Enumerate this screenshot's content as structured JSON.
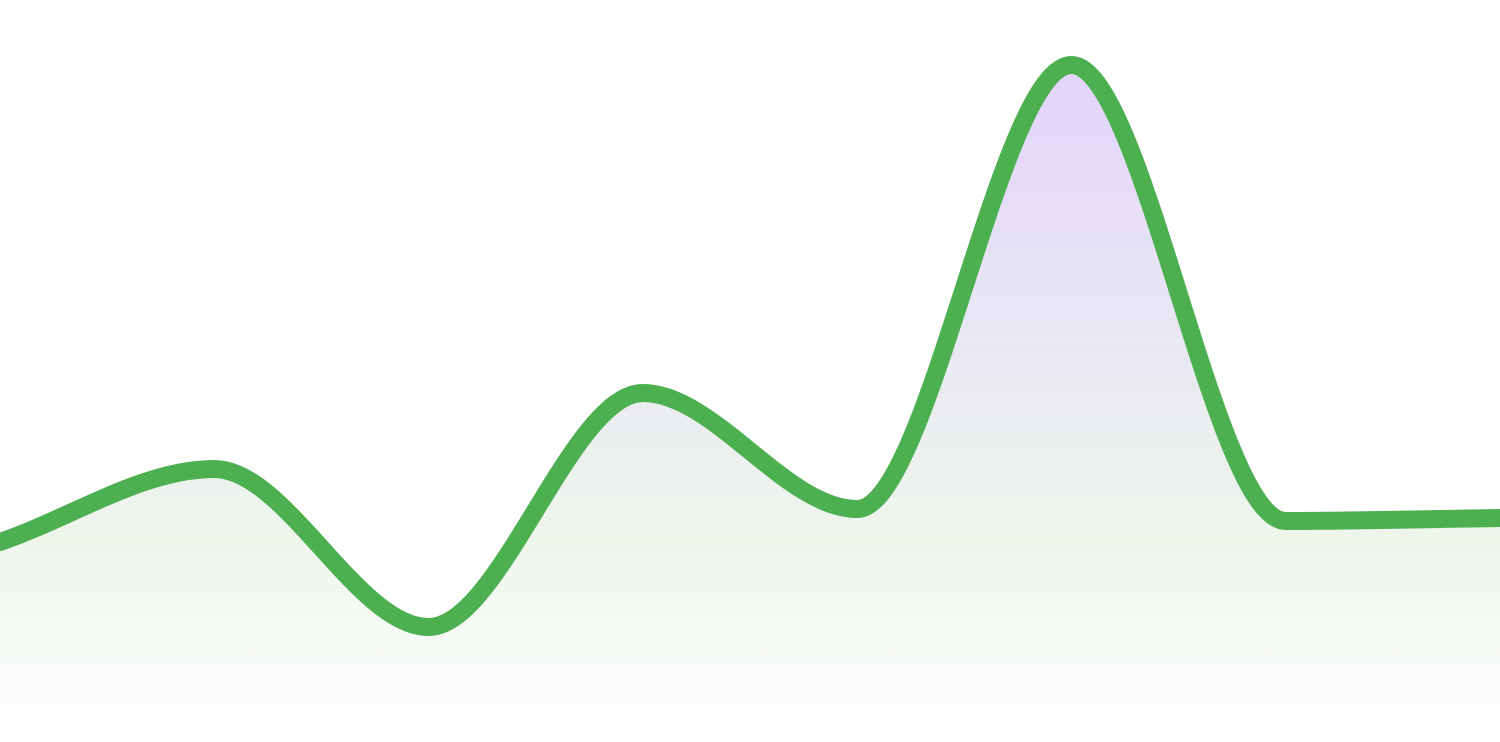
{
  "chart_data": {
    "type": "area",
    "title": "",
    "xlabel": "",
    "ylabel": "",
    "grid": false,
    "legend": "none",
    "curve": "smooth",
    "ylim": [
      0,
      742
    ],
    "x": [
      0,
      1,
      2,
      3,
      4,
      5,
      6,
      7
    ],
    "series": [
      {
        "values": [
          200,
          273,
          115,
          349,
          233,
          677,
          221,
          224
        ]
      }
    ],
    "colors": {
      "line": "#4caf50",
      "fill_top": "#e3d6fb",
      "fill_bottom": "#ffffff"
    }
  }
}
